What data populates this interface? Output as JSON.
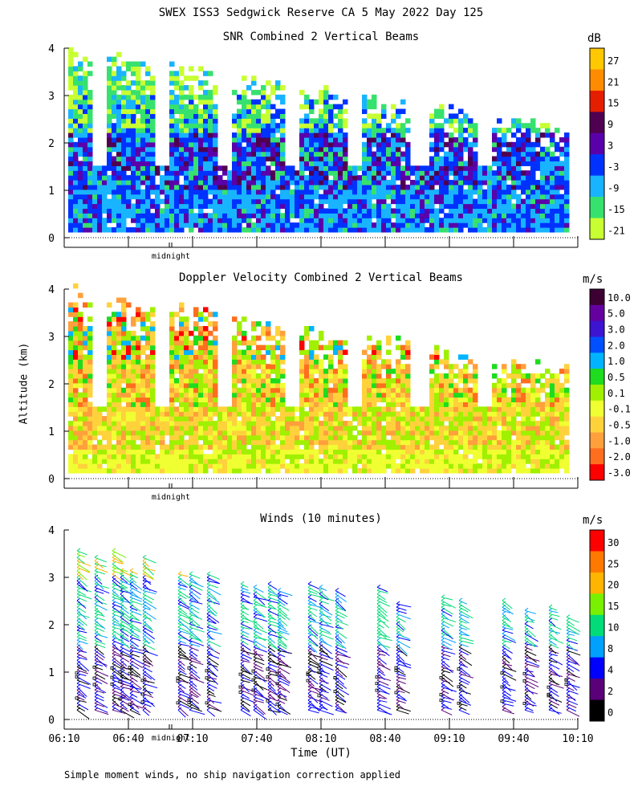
{
  "page": {
    "main_title": "SWEX ISS3 Sedgwick Reserve CA   5 May 2022 Day 125",
    "shared_ylabel": "Altitude (km)",
    "xlabel": "Time (UT)",
    "footnote": "Simple moment winds, no ship navigation correction applied",
    "midnight_label": "midnight"
  },
  "chart_data": [
    {
      "type": "heatmap",
      "title": "SNR Combined 2 Vertical Beams",
      "ylim": [
        0,
        4
      ],
      "yticks": [
        "0",
        "1",
        "2",
        "3",
        "4"
      ],
      "colorbar_unit": "dB",
      "colorbar_labels": [
        "27",
        "21",
        "15",
        "9",
        "3",
        "-3",
        "-9",
        "-15",
        "-21"
      ],
      "colorbar_colors": [
        "#ffc800",
        "#ff8c00",
        "#e61e00",
        "#500050",
        "#5a00aa",
        "#0032ff",
        "#19b4ff",
        "#37e16e",
        "#c8ff32"
      ]
    },
    {
      "type": "heatmap",
      "title": "Doppler Velocity Combined 2 Vertical Beams",
      "ylim": [
        0,
        4
      ],
      "yticks": [
        "0",
        "1",
        "2",
        "3",
        "4"
      ],
      "colorbar_unit": "m/s",
      "colorbar_labels": [
        "10.0",
        "5.0",
        "3.0",
        "2.0",
        "1.0",
        "0.5",
        "0.1",
        "-0.1",
        "-0.5",
        "-1.0",
        "-2.0",
        "-3.0"
      ],
      "colorbar_colors": [
        "#3c0032",
        "#6400a0",
        "#3c14d2",
        "#0050ff",
        "#00b4ff",
        "#1edc1e",
        "#a0f000",
        "#f0ff32",
        "#ffd23c",
        "#ffa03c",
        "#ff6e1e",
        "#ff0000"
      ]
    },
    {
      "type": "scatter",
      "title": "Winds (10 minutes)",
      "ylim": [
        0,
        4
      ],
      "yticks": [
        "0",
        "1",
        "2",
        "3",
        "4"
      ],
      "x_tick_labels": [
        "06:10",
        "06:40",
        "07:10",
        "07:40",
        "08:10",
        "08:40",
        "09:10",
        "09:40",
        "10:10"
      ],
      "colorbar_unit": "m/s",
      "colorbar_labels": [
        "30",
        "25",
        "20",
        "15",
        "10",
        "8",
        "4",
        "2",
        "0"
      ],
      "colorbar_colors": [
        "#ff0000",
        "#ff7800",
        "#ffb400",
        "#78f000",
        "#00dc78",
        "#00a0ff",
        "#0000ff",
        "#5a0078",
        "#000000"
      ]
    }
  ]
}
